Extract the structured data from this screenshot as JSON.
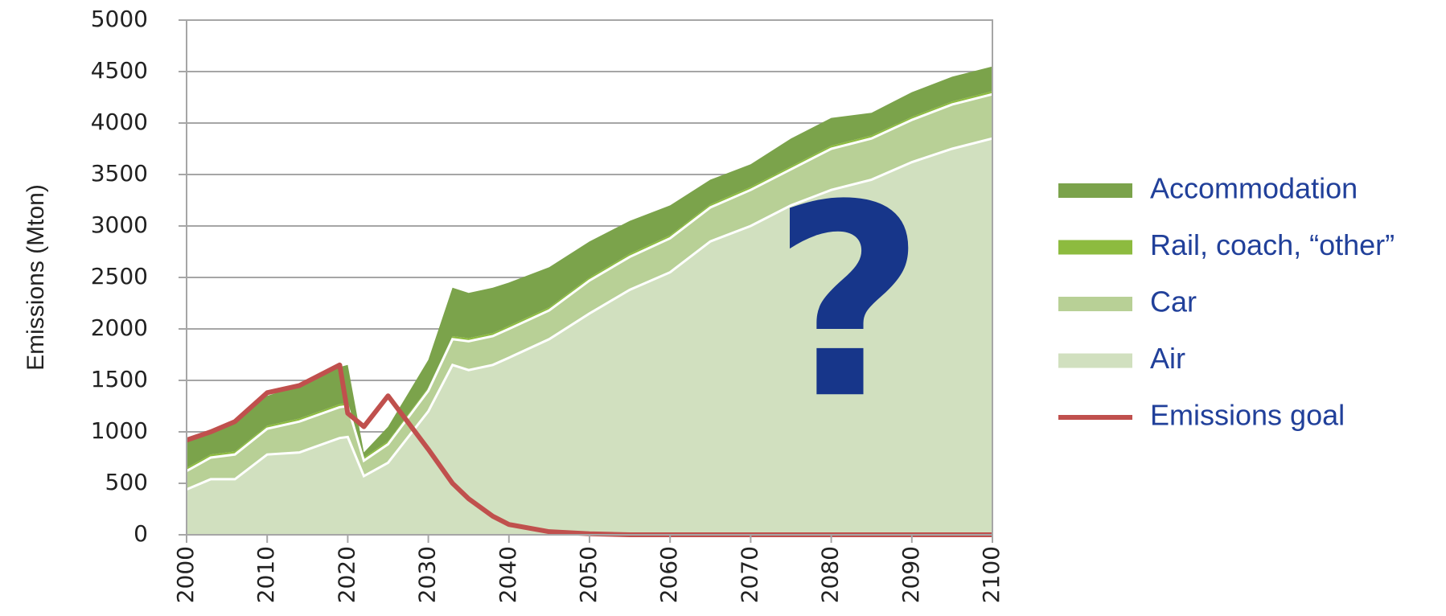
{
  "chart_data": {
    "type": "area",
    "stacked": true,
    "ylabel": "Emissions (Mton)",
    "annotation": "?",
    "x": [
      2000,
      2003,
      2006,
      2010,
      2014,
      2019,
      2020,
      2022,
      2025,
      2030,
      2033,
      2035,
      2038,
      2040,
      2045,
      2050,
      2055,
      2060,
      2065,
      2070,
      2075,
      2080,
      2085,
      2090,
      2095,
      2100
    ],
    "xlim": [
      2000,
      2100
    ],
    "xticks": [
      2000,
      2010,
      2020,
      2030,
      2040,
      2050,
      2060,
      2070,
      2080,
      2090,
      2100
    ],
    "ylim": [
      0,
      5000
    ],
    "yticks": [
      0,
      500,
      1000,
      1500,
      2000,
      2500,
      3000,
      3500,
      4000,
      4500,
      5000
    ],
    "grid": true,
    "series": [
      {
        "name": "Accommodation",
        "color": "#7ba34b",
        "values": [
          250,
          220,
          270,
          290,
          320,
          360,
          370,
          50,
          140,
          270,
          470,
          440,
          440,
          420,
          390,
          350,
          320,
          290,
          240,
          220,
          270,
          270,
          220,
          240,
          240,
          240
        ]
      },
      {
        "name": "Rail, coach, “other”",
        "color": "#8dbb3f",
        "values": [
          30,
          30,
          30,
          30,
          30,
          30,
          30,
          30,
          30,
          30,
          30,
          30,
          30,
          30,
          30,
          30,
          30,
          30,
          30,
          30,
          30,
          30,
          30,
          30,
          30,
          30
        ]
      },
      {
        "name": "Car",
        "color": "#b8d096",
        "values": [
          180,
          210,
          240,
          250,
          300,
          300,
          300,
          150,
          180,
          200,
          250,
          280,
          280,
          280,
          280,
          320,
          320,
          330,
          330,
          350,
          350,
          400,
          400,
          410,
          430,
          430
        ]
      },
      {
        "name": "Air",
        "color": "#d1e0bf",
        "values": [
          440,
          540,
          540,
          780,
          800,
          940,
          950,
          570,
          700,
          1200,
          1650,
          1600,
          1650,
          1720,
          1900,
          2150,
          2380,
          2550,
          2850,
          3000,
          3200,
          3350,
          3450,
          3620,
          3750,
          3850
        ]
      },
      {
        "name": "Emissions goal",
        "type": "line",
        "color": "#c0504d",
        "values": [
          920,
          1000,
          1100,
          1380,
          1450,
          1650,
          1180,
          1050,
          1350,
          830,
          500,
          350,
          180,
          100,
          30,
          10,
          0,
          0,
          0,
          0,
          0,
          0,
          0,
          0,
          0,
          0
        ]
      }
    ]
  }
}
